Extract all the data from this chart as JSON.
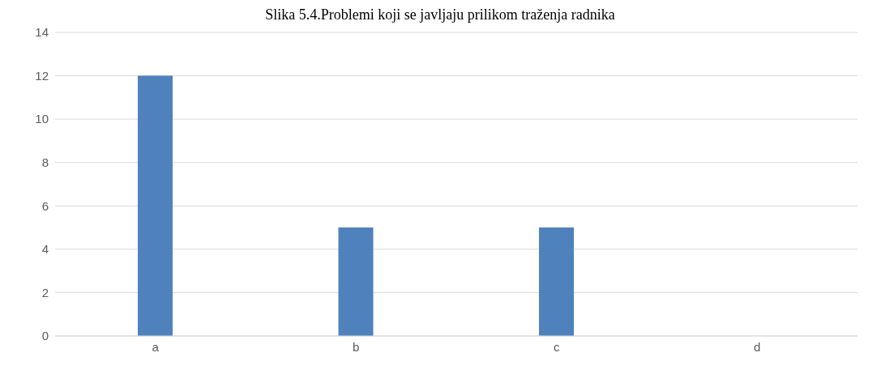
{
  "chart_data": {
    "type": "bar",
    "title": "Slika 5.4.Problemi koji se javljaju prilikom traženja radnika",
    "categories": [
      "a",
      "b",
      "c",
      "d"
    ],
    "values": [
      12,
      5,
      5,
      0
    ],
    "color": "#4f81bd",
    "ylim": [
      0,
      14
    ],
    "yticks": [
      0,
      2,
      4,
      6,
      8,
      10,
      12,
      14
    ],
    "grid": "y"
  }
}
